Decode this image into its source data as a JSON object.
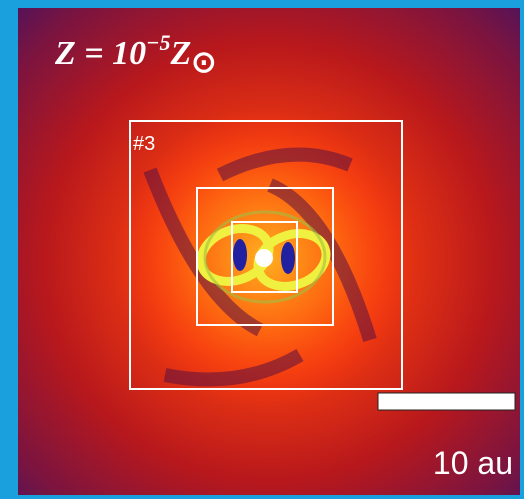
{
  "label": {
    "base": "Z = 10",
    "exponent": "−5",
    "symbol": "Z",
    "subscript": "⊙"
  },
  "box_label": "#3",
  "scale_bar": "10 au"
}
